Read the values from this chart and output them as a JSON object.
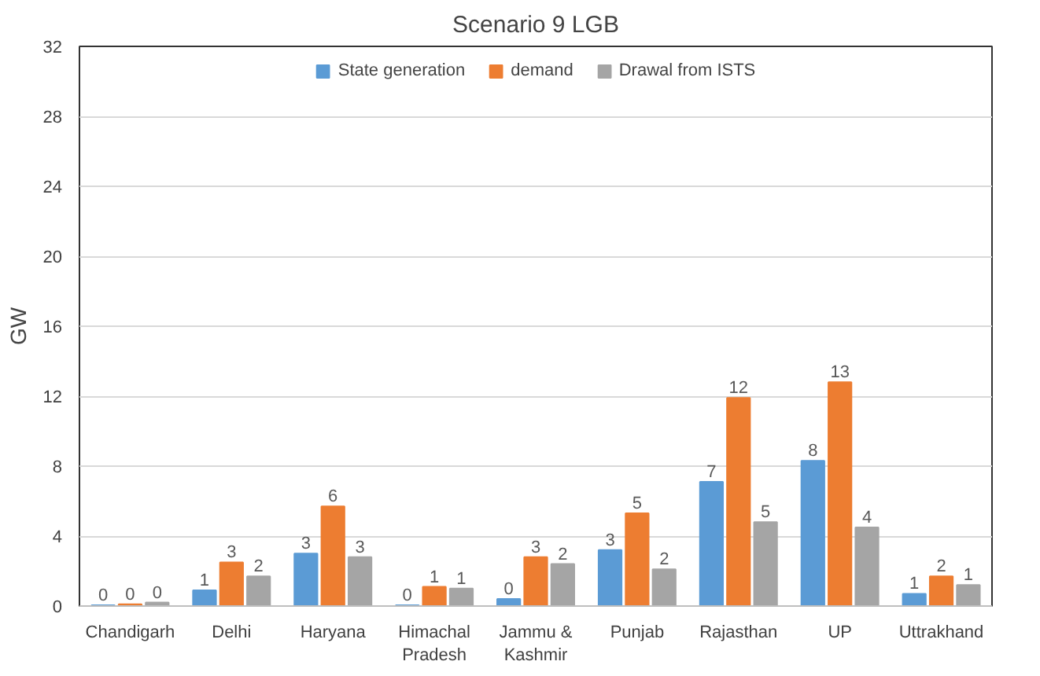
{
  "chart_data": {
    "type": "bar",
    "title": "Scenario 9 LGB",
    "ylabel": "GW",
    "categories": [
      "Chandigarh",
      "Delhi",
      "Haryana",
      "Himachal\nPradesh",
      "Jammu &\nKashmir",
      "Punjab",
      "Rajasthan",
      "UP",
      "Uttrakhand"
    ],
    "series": [
      {
        "name": "State generation",
        "color": "#5b9bd5",
        "values": [
          0.05,
          0.9,
          3.0,
          0.05,
          0.4,
          3.2,
          7.1,
          8.3,
          0.7
        ],
        "value_labels": [
          "0",
          "1",
          "3",
          "0",
          "0",
          "3",
          "7",
          "8",
          "1"
        ]
      },
      {
        "name": "demand",
        "color": "#ed7d31",
        "values": [
          0.1,
          2.5,
          5.7,
          1.1,
          2.8,
          5.3,
          11.9,
          12.8,
          1.7
        ],
        "value_labels": [
          "0",
          "3",
          "6",
          "1",
          "3",
          "5",
          "12",
          "13",
          "2"
        ]
      },
      {
        "name": "Drawal from ISTS",
        "color": "#a5a5a5",
        "values": [
          0.2,
          1.7,
          2.8,
          1.0,
          2.4,
          2.1,
          4.8,
          4.5,
          1.2
        ],
        "value_labels": [
          "0",
          "2",
          "3",
          "1",
          "2",
          "2",
          "5",
          "4",
          "1"
        ]
      }
    ],
    "ylim": [
      0,
      32
    ],
    "yticks": [
      0,
      4,
      8,
      12,
      16,
      20,
      24,
      28,
      32
    ],
    "grid": "y",
    "legend": "top"
  }
}
